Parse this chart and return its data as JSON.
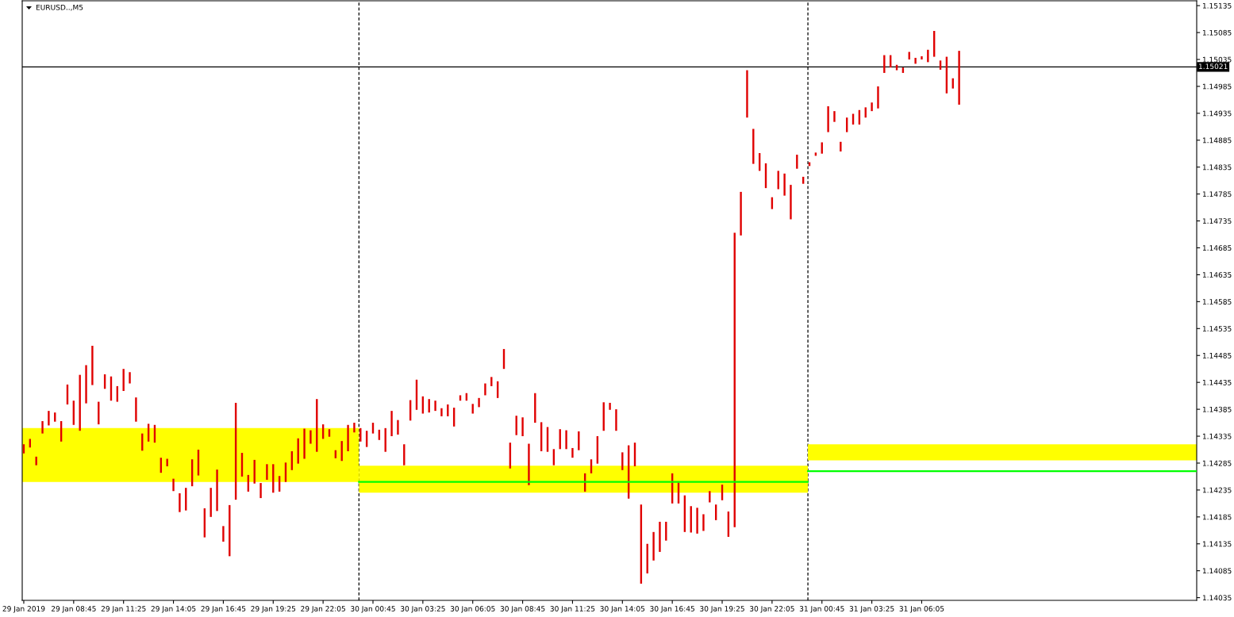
{
  "chart_data": {
    "type": "bar",
    "title": "EURUSD..,M5",
    "xlim": [
      "2019-01-29T06:00",
      "2019-01-31T20:47"
    ],
    "xticks": [
      {
        "value": "2019-01-29T06:05",
        "label": "29 Jan 2019"
      },
      {
        "value": "2019-01-29T08:45",
        "label": "29 Jan 08:45"
      },
      {
        "value": "2019-01-29T11:25",
        "label": "29 Jan 11:25"
      },
      {
        "value": "2019-01-29T14:05",
        "label": "29 Jan 14:05"
      },
      {
        "value": "2019-01-29T16:45",
        "label": "29 Jan 16:45"
      },
      {
        "value": "2019-01-29T19:25",
        "label": "29 Jan 19:25"
      },
      {
        "value": "2019-01-29T22:05",
        "label": "29 Jan 22:05"
      },
      {
        "value": "2019-01-30T00:45",
        "label": "30 Jan 00:45"
      },
      {
        "value": "2019-01-30T03:25",
        "label": "30 Jan 03:25"
      },
      {
        "value": "2019-01-30T06:05",
        "label": "30 Jan 06:05"
      },
      {
        "value": "2019-01-30T08:45",
        "label": "30 Jan 08:45"
      },
      {
        "value": "2019-01-30T11:25",
        "label": "30 Jan 11:25"
      },
      {
        "value": "2019-01-30T14:05",
        "label": "30 Jan 14:05"
      },
      {
        "value": "2019-01-30T16:45",
        "label": "30 Jan 16:45"
      },
      {
        "value": "2019-01-30T19:25",
        "label": "30 Jan 19:25"
      },
      {
        "value": "2019-01-30T22:05",
        "label": "30 Jan 22:05"
      },
      {
        "value": "2019-01-31T00:45",
        "label": "31 Jan 00:45"
      },
      {
        "value": "2019-01-31T03:25",
        "label": "31 Jan 03:25"
      },
      {
        "value": "2019-01-31T06:05",
        "label": "31 Jan 06:05"
      }
    ],
    "ylim": [
      1.1403,
      1.15144
    ],
    "yticks": [
      1.15135,
      1.15085,
      1.15035,
      1.14985,
      1.14935,
      1.14885,
      1.14835,
      1.14785,
      1.14735,
      1.14685,
      1.14635,
      1.14585,
      1.14535,
      1.14485,
      1.14435,
      1.14385,
      1.14335,
      1.14285,
      1.14235,
      1.14185,
      1.14135,
      1.14085,
      1.14035
    ],
    "series": [
      {
        "color": "#ffff00",
        "x": [
          "2019-01-29T12:00",
          "2019-01-30T12:00",
          "2019-01-31T12:00"
        ],
        "values": [
          0.001,
          0.0005,
          0.0003
        ],
        "base": [
          1.1425,
          1.1423,
          1.1429
        ]
      },
      {
        "color": "#e00000",
        "x": [
          "2019-01-29T06:05",
          "2019-01-29T06:25",
          "2019-01-29T06:45",
          "2019-01-29T07:05",
          "2019-01-29T07:25",
          "2019-01-29T07:45",
          "2019-01-29T08:05",
          "2019-01-29T08:25",
          "2019-01-29T08:45",
          "2019-01-29T09:05",
          "2019-01-29T09:25",
          "2019-01-29T09:45",
          "2019-01-29T10:05",
          "2019-01-29T10:25",
          "2019-01-29T10:45",
          "2019-01-29T11:05",
          "2019-01-29T11:25",
          "2019-01-29T11:45",
          "2019-01-29T12:05",
          "2019-01-29T12:25",
          "2019-01-29T12:45",
          "2019-01-29T13:05",
          "2019-01-29T13:25",
          "2019-01-29T13:45",
          "2019-01-29T14:05",
          "2019-01-29T14:25",
          "2019-01-29T14:45",
          "2019-01-29T15:05",
          "2019-01-29T15:25",
          "2019-01-29T15:45",
          "2019-01-29T16:05",
          "2019-01-29T16:25",
          "2019-01-29T16:45",
          "2019-01-29T17:05",
          "2019-01-29T17:25",
          "2019-01-29T17:45",
          "2019-01-29T18:05",
          "2019-01-29T18:25",
          "2019-01-29T18:45",
          "2019-01-29T19:05",
          "2019-01-29T19:25",
          "2019-01-29T19:45",
          "2019-01-29T20:05",
          "2019-01-29T20:25",
          "2019-01-29T20:45",
          "2019-01-29T21:05",
          "2019-01-29T21:25",
          "2019-01-29T21:45",
          "2019-01-29T22:05",
          "2019-01-29T22:25",
          "2019-01-29T22:45",
          "2019-01-29T23:05",
          "2019-01-29T23:25",
          "2019-01-29T23:45",
          "2019-01-30T00:05",
          "2019-01-30T00:25",
          "2019-01-30T00:45",
          "2019-01-30T01:05",
          "2019-01-30T01:25",
          "2019-01-30T01:45",
          "2019-01-30T02:05",
          "2019-01-30T02:25",
          "2019-01-30T02:45",
          "2019-01-30T03:05",
          "2019-01-30T03:25",
          "2019-01-30T03:45",
          "2019-01-30T04:05",
          "2019-01-30T04:25",
          "2019-01-30T04:45",
          "2019-01-30T05:05",
          "2019-01-30T05:25",
          "2019-01-30T05:45",
          "2019-01-30T06:05",
          "2019-01-30T06:25",
          "2019-01-30T06:45",
          "2019-01-30T07:05",
          "2019-01-30T07:25",
          "2019-01-30T07:45",
          "2019-01-30T08:05",
          "2019-01-30T08:25",
          "2019-01-30T08:45",
          "2019-01-30T09:05",
          "2019-01-30T09:25",
          "2019-01-30T09:45",
          "2019-01-30T10:05",
          "2019-01-30T10:25",
          "2019-01-30T10:45",
          "2019-01-30T11:05",
          "2019-01-30T11:25",
          "2019-01-30T11:45",
          "2019-01-30T12:05",
          "2019-01-30T12:25",
          "2019-01-30T12:45",
          "2019-01-30T13:05",
          "2019-01-30T13:25",
          "2019-01-30T13:45",
          "2019-01-30T14:05",
          "2019-01-30T14:25",
          "2019-01-30T14:45",
          "2019-01-30T15:05",
          "2019-01-30T15:25",
          "2019-01-30T15:45",
          "2019-01-30T16:05",
          "2019-01-30T16:25",
          "2019-01-30T16:45",
          "2019-01-30T17:05",
          "2019-01-30T17:25",
          "2019-01-30T17:45",
          "2019-01-30T18:05",
          "2019-01-30T18:25",
          "2019-01-30T18:45",
          "2019-01-30T19:05",
          "2019-01-30T19:25",
          "2019-01-30T19:45",
          "2019-01-30T20:05",
          "2019-01-30T20:25",
          "2019-01-30T20:45",
          "2019-01-30T21:05",
          "2019-01-30T21:25",
          "2019-01-30T21:45",
          "2019-01-30T22:05",
          "2019-01-30T22:25",
          "2019-01-30T22:45",
          "2019-01-30T23:05",
          "2019-01-30T23:25",
          "2019-01-30T23:45",
          "2019-01-31T00:05",
          "2019-01-31T00:25",
          "2019-01-31T00:45",
          "2019-01-31T01:05",
          "2019-01-31T01:25",
          "2019-01-31T01:45",
          "2019-01-31T02:05",
          "2019-01-31T02:25",
          "2019-01-31T02:45",
          "2019-01-31T03:05",
          "2019-01-31T03:25",
          "2019-01-31T03:45",
          "2019-01-31T04:05",
          "2019-01-31T04:25",
          "2019-01-31T04:45",
          "2019-01-31T05:05",
          "2019-01-31T05:25",
          "2019-01-31T05:45",
          "2019-01-31T06:05",
          "2019-01-31T06:25",
          "2019-01-31T06:45",
          "2019-01-31T07:05",
          "2019-01-31T07:25",
          "2019-01-31T07:45",
          "2019-01-31T08:05"
        ],
        "values": [
          0.00017,
          0.00016,
          0.00016,
          0.00023,
          0.00027,
          0.00017,
          0.00038,
          0.00037,
          0.00045,
          0.00104,
          0.00071,
          0.00073,
          0.00042,
          0.00027,
          0.00045,
          0.00029,
          0.00041,
          0.00021,
          0.00045,
          0.00032,
          0.00033,
          0.00033,
          0.00028,
          0.00014,
          0.00023,
          0.00035,
          0.00042,
          0.0005,
          0.00048,
          0.00054,
          0.00054,
          0.00077,
          0.00029,
          0.00095,
          0.0018,
          0.00044,
          0.00031,
          0.00044,
          0.00028,
          0.00029,
          0.00053,
          0.00029,
          0.00036,
          0.00035,
          0.00047,
          0.00056,
          0.00025,
          0.00098,
          0.00027,
          0.00014,
          0.00015,
          0.00037,
          0.00049,
          0.00018,
          0.00025,
          0.0003,
          0.0002,
          0.00019,
          0.00044,
          0.00047,
          0.00027,
          0.00039,
          0.00038,
          0.00056,
          0.00032,
          0.00025,
          0.00019,
          0.00015,
          0.00022,
          0.00035,
          0.0001,
          0.00014,
          0.00018,
          0.00017,
          0.00022,
          0.00017,
          0.00031,
          0.00037,
          0.00048,
          0.00036,
          0.00035,
          0.00077,
          0.00055,
          0.00054,
          0.00046,
          0.0003,
          0.00037,
          0.00035,
          0.00018,
          0.00035,
          0.00034,
          0.00026,
          0.00051,
          0.00053,
          0.00013,
          0.0004,
          0.00033,
          0.00099,
          0.00044,
          0.00147,
          0.00055,
          0.00053,
          0.00056,
          0.00035,
          0.00056,
          0.00039,
          0.00068,
          0.00049,
          0.00048,
          0.00031,
          0.00021,
          0.00029,
          0.00029,
          0.00047,
          0.00547,
          0.00081,
          0.00088,
          0.00065,
          0.00033,
          0.00046,
          0.00022,
          0.00034,
          0.00041,
          0.00064,
          0.00026,
          0.00013,
          7e-05,
          6e-05,
          0.00021,
          0.00048,
          0.0002,
          0.00018,
          0.00027,
          0.0002,
          0.00027,
          0.00019,
          0.00016,
          0.00041,
          0.00033,
          0.00023,
          0.0001,
          0.0001,
          0.00014,
          0.00011,
          6e-05,
          0.00023,
          0.00048,
          0.00017,
          0.00068,
          0.00019,
          0.001
        ],
        "base": [
          1.14303,
          1.14314,
          1.14281,
          1.1434,
          1.14355,
          1.14362,
          1.14325,
          1.14394,
          1.14356,
          1.14345,
          1.14396,
          1.1443,
          1.14357,
          1.14423,
          1.14401,
          1.14399,
          1.14419,
          1.14433,
          1.14362,
          1.14308,
          1.14325,
          1.14323,
          1.14267,
          1.14279,
          1.14233,
          1.14194,
          1.14197,
          1.14242,
          1.14262,
          1.14147,
          1.14185,
          1.14196,
          1.14139,
          1.14112,
          1.14217,
          1.1426,
          1.14232,
          1.14247,
          1.1422,
          1.14254,
          1.1423,
          1.14232,
          1.1425,
          1.14272,
          1.14284,
          1.14293,
          1.14321,
          1.14306,
          1.1433,
          1.14334,
          1.14294,
          1.14289,
          1.14307,
          1.14342,
          1.14325,
          1.14315,
          1.1434,
          1.14328,
          1.14306,
          1.14335,
          1.14338,
          1.14281,
          1.14364,
          1.14384,
          1.14377,
          1.14379,
          1.14382,
          1.14372,
          1.14372,
          1.14353,
          1.14401,
          1.14401,
          1.14377,
          1.14389,
          1.14411,
          1.14428,
          1.14406,
          1.1446,
          1.14275,
          1.14337,
          1.14335,
          1.14244,
          1.1436,
          1.14307,
          1.14306,
          1.14281,
          1.14311,
          1.14311,
          1.14295,
          1.14309,
          1.14232,
          1.14266,
          1.14284,
          1.14345,
          1.14384,
          1.14345,
          1.14272,
          1.14219,
          1.14279,
          1.14061,
          1.1408,
          1.14104,
          1.1412,
          1.14141,
          1.1421,
          1.1421,
          1.14157,
          1.14156,
          1.14154,
          1.14159,
          1.14212,
          1.14179,
          1.14216,
          1.14148,
          1.14166,
          1.14708,
          1.14927,
          1.14841,
          1.14828,
          1.14796,
          1.14757,
          1.14794,
          1.14782,
          1.14738,
          1.14832,
          1.14804,
          1.14837,
          1.14856,
          1.1486,
          1.149,
          1.14919,
          1.14864,
          1.149,
          1.14914,
          1.14914,
          1.14927,
          1.14939,
          1.14944,
          1.1501,
          1.1502,
          1.15015,
          1.1501,
          1.15035,
          1.15027,
          1.15035,
          1.1503,
          1.1504,
          1.15016,
          1.14972,
          1.14981,
          1.14951
        ]
      },
      {
        "type": "line",
        "color": "#00ff00",
        "x": [
          "2019-01-30T00:00",
          "2019-01-31T00:00"
        ],
        "values": [
          1.1425,
          1.1425
        ]
      },
      {
        "type": "line",
        "color": "#00ff00",
        "x": [
          "2019-01-31T00:00",
          "2019-01-31T20:47"
        ],
        "values": [
          1.1427,
          1.1427
        ]
      }
    ],
    "ref_lines": [
      {
        "axis": "y",
        "value": 1.15021,
        "label": "1.15021",
        "color": "#000000"
      },
      {
        "axis": "x",
        "value": "2019-01-30T00:00",
        "color": "#000000",
        "line_style": "dashed"
      },
      {
        "axis": "x",
        "value": "2019-01-31T00:00",
        "color": "#000000",
        "line_style": "dashed"
      }
    ]
  }
}
